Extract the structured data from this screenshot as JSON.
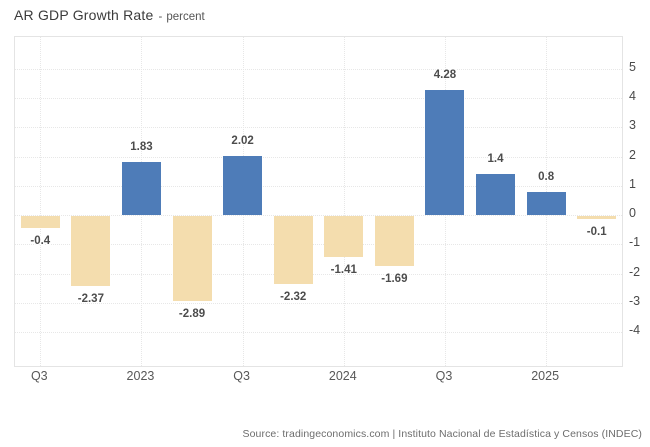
{
  "header": {
    "title": "AR GDP Growth Rate",
    "separator": "-",
    "unit": "percent"
  },
  "chart_data": {
    "type": "bar",
    "title": "AR GDP Growth Rate",
    "ylabel": "percent",
    "values": [
      -0.4,
      -2.37,
      1.83,
      -2.89,
      2.02,
      -2.32,
      -1.41,
      -1.69,
      4.28,
      1.4,
      0.8,
      -0.1
    ],
    "bar_labels": [
      "-0.4",
      "-2.37",
      "1.83",
      "-2.89",
      "2.02",
      "-2.32",
      "-1.41",
      "-1.69",
      "4.28",
      "1.4",
      "0.8",
      "-0.1"
    ],
    "x_ticks": [
      {
        "index": 0,
        "label": "Q3"
      },
      {
        "index": 2,
        "label": "2023"
      },
      {
        "index": 4,
        "label": "Q3"
      },
      {
        "index": 6,
        "label": "2024"
      },
      {
        "index": 8,
        "label": "Q3"
      },
      {
        "index": 10,
        "label": "2025"
      }
    ],
    "y_ticks": [
      5,
      4,
      3,
      2,
      1,
      0,
      -1,
      -2,
      -3,
      -4
    ],
    "ylim": [
      -5.15,
      6.08
    ],
    "grid": true,
    "legend": false,
    "y_axis_position": "right",
    "positive_color": "#4e7cb8",
    "negative_color": "#f4ddae"
  },
  "footer": {
    "source": "Source: tradingeconomics.com | Instituto Nacional de Estadística y Censos (INDEC)"
  }
}
